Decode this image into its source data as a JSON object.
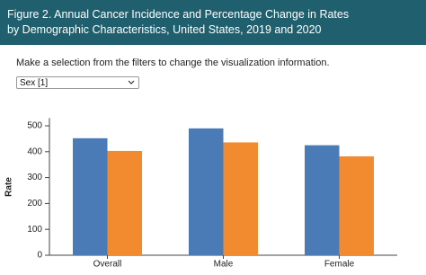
{
  "chart_data": {
    "type": "bar",
    "title": "Figure 2. Annual Cancer Incidence and Percentage Change in Rates by Demographic Characteristics, United States, 2019 and 2020",
    "instruction": "Make a selection from the filters to change the visualization information.",
    "filter": "Sex [1]",
    "y_label": "Rate",
    "categories": [
      "Overall",
      "Male",
      "Female"
    ],
    "series": [
      {
        "color": "#4a7bb7",
        "values": [
          452,
          490,
          425
        ]
      },
      {
        "color": "#f28a30",
        "values": [
          403,
          436,
          382
        ]
      }
    ],
    "ylim": [
      0,
      530
    ],
    "yticks": [
      0,
      100,
      200,
      300,
      400,
      500
    ],
    "grid": false
  }
}
